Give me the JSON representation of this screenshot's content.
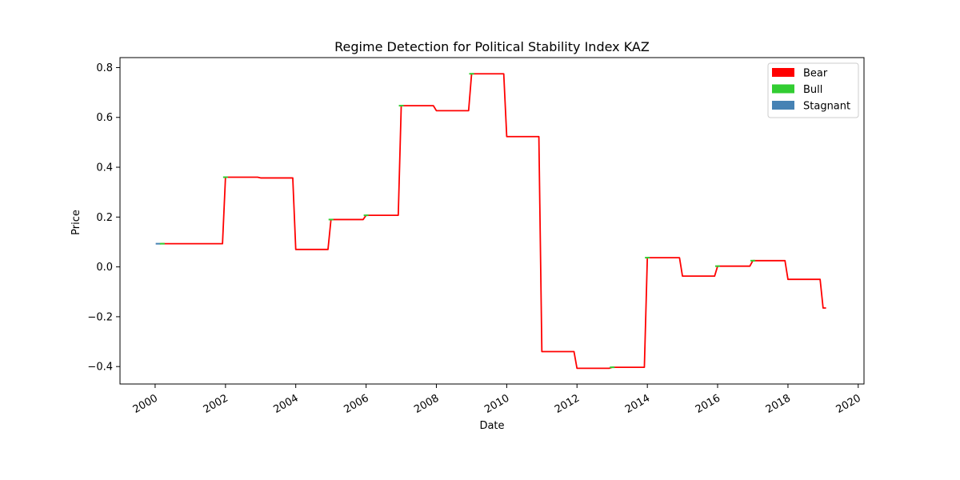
{
  "chart_data": {
    "type": "line",
    "title": "Regime Detection for Political Stability Index KAZ",
    "xlabel": "Date",
    "ylabel": "Price",
    "x_axis_type": "date",
    "xlim": [
      "1999-01-01",
      "2020-03-01"
    ],
    "ylim": [
      -0.47,
      0.84
    ],
    "x_ticks": [
      {
        "date": "2000-01-01",
        "label": "2000"
      },
      {
        "date": "2002-01-01",
        "label": "2002"
      },
      {
        "date": "2004-01-01",
        "label": "2004"
      },
      {
        "date": "2006-01-01",
        "label": "2006"
      },
      {
        "date": "2008-01-01",
        "label": "2008"
      },
      {
        "date": "2010-01-01",
        "label": "2010"
      },
      {
        "date": "2012-01-01",
        "label": "2012"
      },
      {
        "date": "2014-01-01",
        "label": "2014"
      },
      {
        "date": "2016-01-01",
        "label": "2016"
      },
      {
        "date": "2018-01-01",
        "label": "2018"
      },
      {
        "date": "2020-01-01",
        "label": "2020"
      }
    ],
    "y_ticks": [
      {
        "value": -0.4,
        "label": "−0.4"
      },
      {
        "value": -0.2,
        "label": "−0.2"
      },
      {
        "value": 0.0,
        "label": "0.0"
      },
      {
        "value": 0.2,
        "label": "0.2"
      },
      {
        "value": 0.4,
        "label": "0.4"
      },
      {
        "value": 0.6,
        "label": "0.6"
      },
      {
        "value": 0.8,
        "label": "0.8"
      }
    ],
    "grid": false,
    "legend_position": "top-right",
    "legend": [
      {
        "label": "Bear",
        "color": "#ff0000"
      },
      {
        "label": "Bull",
        "color": "#32cd32"
      },
      {
        "label": "Stagnant",
        "color": "#4682b4"
      }
    ],
    "series": [
      {
        "name": "Bear",
        "color": "#ff0000",
        "points": [
          {
            "x": "2000-03-01",
            "y": 0.093
          },
          {
            "x": "2001-12-01",
            "y": 0.093
          },
          {
            "x": "2002-01-01",
            "y": 0.36
          },
          {
            "x": "2002-12-01",
            "y": 0.36
          },
          {
            "x": "2003-01-01",
            "y": 0.357
          },
          {
            "x": "2003-12-01",
            "y": 0.357
          },
          {
            "x": "2004-01-01",
            "y": 0.07
          },
          {
            "x": "2004-12-01",
            "y": 0.07
          },
          {
            "x": "2005-01-01",
            "y": 0.19
          },
          {
            "x": "2005-12-01",
            "y": 0.19
          },
          {
            "x": "2006-01-01",
            "y": 0.207
          },
          {
            "x": "2006-12-01",
            "y": 0.207
          },
          {
            "x": "2007-01-01",
            "y": 0.647
          },
          {
            "x": "2007-12-01",
            "y": 0.647
          },
          {
            "x": "2008-01-01",
            "y": 0.627
          },
          {
            "x": "2008-12-01",
            "y": 0.627
          },
          {
            "x": "2009-01-01",
            "y": 0.775
          },
          {
            "x": "2009-12-01",
            "y": 0.775
          },
          {
            "x": "2010-01-01",
            "y": 0.523
          },
          {
            "x": "2010-12-01",
            "y": 0.523
          },
          {
            "x": "2011-01-01",
            "y": -0.34
          },
          {
            "x": "2011-12-01",
            "y": -0.34
          },
          {
            "x": "2012-01-01",
            "y": -0.407
          },
          {
            "x": "2012-12-01",
            "y": -0.407
          },
          {
            "x": "2013-01-01",
            "y": -0.403
          },
          {
            "x": "2013-12-01",
            "y": -0.403
          },
          {
            "x": "2014-01-01",
            "y": 0.037
          },
          {
            "x": "2014-12-01",
            "y": 0.037
          },
          {
            "x": "2015-01-01",
            "y": -0.037
          },
          {
            "x": "2015-12-01",
            "y": -0.037
          },
          {
            "x": "2016-01-01",
            "y": 0.003
          },
          {
            "x": "2016-12-01",
            "y": 0.003
          },
          {
            "x": "2017-01-01",
            "y": 0.025
          },
          {
            "x": "2017-12-01",
            "y": 0.025
          },
          {
            "x": "2018-01-01",
            "y": -0.05
          },
          {
            "x": "2018-12-01",
            "y": -0.05
          },
          {
            "x": "2019-01-01",
            "y": -0.165
          },
          {
            "x": "2019-02-01",
            "y": -0.165
          }
        ]
      }
    ],
    "markers": [
      {
        "regime": "Stagnant",
        "x": "2000-02-01",
        "y": 0.093
      },
      {
        "regime": "Bull",
        "x": "2000-03-15",
        "y": 0.093
      },
      {
        "regime": "Bull",
        "x": "2002-01-01",
        "y": 0.36
      },
      {
        "regime": "Bull",
        "x": "2005-01-01",
        "y": 0.19
      },
      {
        "regime": "Bull",
        "x": "2006-01-01",
        "y": 0.207
      },
      {
        "regime": "Bull",
        "x": "2007-01-01",
        "y": 0.647
      },
      {
        "regime": "Bull",
        "x": "2009-01-01",
        "y": 0.775
      },
      {
        "regime": "Bull",
        "x": "2013-01-01",
        "y": -0.403
      },
      {
        "regime": "Bull",
        "x": "2014-01-01",
        "y": 0.037
      },
      {
        "regime": "Bull",
        "x": "2016-01-01",
        "y": 0.003
      },
      {
        "regime": "Bull",
        "x": "2017-01-01",
        "y": 0.025
      }
    ]
  }
}
